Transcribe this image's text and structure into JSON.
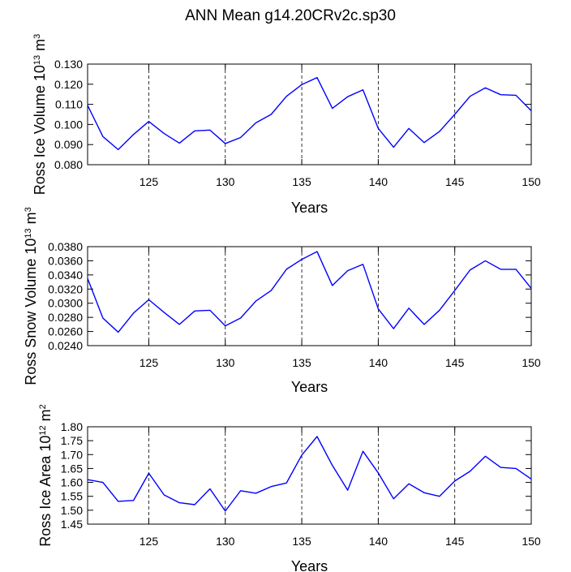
{
  "title": "ANN Mean g14.20CRv2c.sp30",
  "colors": {
    "line": "#0000ff",
    "axis": "#000000",
    "background": "#ffffff"
  },
  "chart_data": [
    {
      "type": "line",
      "name": "ross-ice-volume",
      "ylabel": {
        "prefix": "Ross Ice Volume 10",
        "exp": "13",
        "unit": "m",
        "unit_exp": "3"
      },
      "xlabel": "Years",
      "xlim": [
        121,
        150
      ],
      "ylim": [
        0.08,
        0.13
      ],
      "xticks": [
        125,
        130,
        135,
        140,
        145,
        150
      ],
      "yticks": [
        0.08,
        0.09,
        0.1,
        0.11,
        0.12,
        0.13
      ],
      "ytick_labels": [
        "0.080",
        "0.090",
        "0.100",
        "0.110",
        "0.120",
        "0.130"
      ],
      "grid_x": [
        125,
        130,
        135,
        140,
        145
      ],
      "x": [
        121,
        122,
        123,
        124,
        125,
        126,
        127,
        128,
        129,
        130,
        131,
        132,
        133,
        134,
        135,
        136,
        137,
        138,
        139,
        140,
        141,
        142,
        143,
        144,
        145,
        146,
        147,
        148,
        149,
        150
      ],
      "values": [
        0.1095,
        0.094,
        0.0875,
        0.095,
        0.1015,
        0.0955,
        0.0907,
        0.0968,
        0.0972,
        0.0905,
        0.0935,
        0.1008,
        0.105,
        0.114,
        0.1198,
        0.1233,
        0.108,
        0.1138,
        0.1172,
        0.098,
        0.0887,
        0.098,
        0.091,
        0.0965,
        0.105,
        0.114,
        0.1182,
        0.1148,
        0.1145,
        0.1068
      ]
    },
    {
      "type": "line",
      "name": "ross-snow-volume",
      "ylabel": {
        "prefix": "Ross Snow Volume 10",
        "exp": "13",
        "unit": "m",
        "unit_exp": "3"
      },
      "xlabel": "Years",
      "xlim": [
        121,
        150
      ],
      "ylim": [
        0.024,
        0.038
      ],
      "xticks": [
        125,
        130,
        135,
        140,
        145,
        150
      ],
      "yticks": [
        0.024,
        0.026,
        0.028,
        0.03,
        0.032,
        0.034,
        0.036,
        0.038
      ],
      "ytick_labels": [
        "0.0240",
        "0.0260",
        "0.0280",
        "0.0300",
        "0.0320",
        "0.0340",
        "0.0360",
        "0.0380"
      ],
      "grid_x": [
        125,
        130,
        135,
        140,
        145
      ],
      "x": [
        121,
        122,
        123,
        124,
        125,
        126,
        127,
        128,
        129,
        130,
        131,
        132,
        133,
        134,
        135,
        136,
        137,
        138,
        139,
        140,
        141,
        142,
        143,
        144,
        145,
        146,
        147,
        148,
        149,
        150
      ],
      "values": [
        0.0335,
        0.0279,
        0.0259,
        0.0286,
        0.0305,
        0.0287,
        0.027,
        0.0289,
        0.029,
        0.0268,
        0.0279,
        0.0303,
        0.0318,
        0.0348,
        0.0362,
        0.0373,
        0.0325,
        0.0346,
        0.0355,
        0.0292,
        0.0264,
        0.0293,
        0.027,
        0.029,
        0.0318,
        0.0347,
        0.036,
        0.0348,
        0.0348,
        0.0321
      ]
    },
    {
      "type": "line",
      "name": "ross-ice-area",
      "ylabel": {
        "prefix": "Ross Ice Area 10",
        "exp": "12",
        "unit": "m",
        "unit_exp": "2"
      },
      "xlabel": "Years",
      "xlim": [
        121,
        150
      ],
      "ylim": [
        1.45,
        1.8
      ],
      "xticks": [
        125,
        130,
        135,
        140,
        145,
        150
      ],
      "yticks": [
        1.45,
        1.5,
        1.55,
        1.6,
        1.65,
        1.7,
        1.75,
        1.8
      ],
      "ytick_labels": [
        "1.45",
        "1.50",
        "1.55",
        "1.60",
        "1.65",
        "1.70",
        "1.75",
        "1.80"
      ],
      "grid_x": [
        125,
        130,
        135,
        140,
        145
      ],
      "x": [
        121,
        122,
        123,
        124,
        125,
        126,
        127,
        128,
        129,
        130,
        131,
        132,
        133,
        134,
        135,
        136,
        137,
        138,
        139,
        140,
        141,
        142,
        143,
        144,
        145,
        146,
        147,
        148,
        149,
        150
      ],
      "values": [
        1.61,
        1.6,
        1.532,
        1.535,
        1.633,
        1.555,
        1.527,
        1.52,
        1.577,
        1.497,
        1.57,
        1.561,
        1.585,
        1.598,
        1.698,
        1.765,
        1.661,
        1.572,
        1.712,
        1.634,
        1.541,
        1.595,
        1.563,
        1.55,
        1.605,
        1.64,
        1.694,
        1.654,
        1.65,
        1.612
      ]
    }
  ]
}
